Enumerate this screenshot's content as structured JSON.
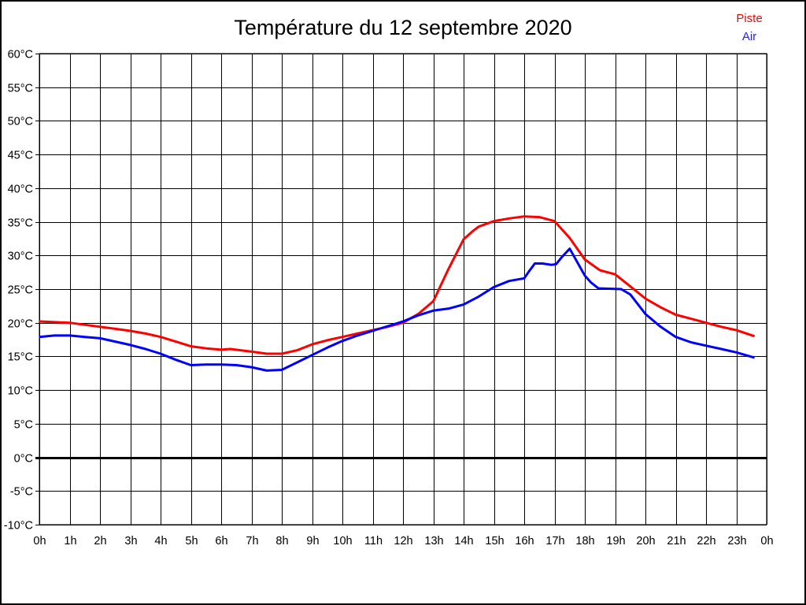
{
  "page": {
    "background": "#ffffff",
    "border_color": "#000000"
  },
  "chart_data": {
    "type": "line",
    "title": "Température du 12 septembre 2020",
    "xlabel": "",
    "ylabel": "",
    "xlim": [
      0,
      24
    ],
    "ylim": [
      -10,
      60
    ],
    "grid": true,
    "grid_color": "#000000",
    "legend_position": "top-right",
    "legend": [
      {
        "label": "Piste",
        "color": "#ff0000"
      },
      {
        "label": "Air",
        "color": "#2222ff"
      }
    ],
    "x_ticks": [
      {
        "v": 0,
        "label": "0h"
      },
      {
        "v": 1,
        "label": "1h"
      },
      {
        "v": 2,
        "label": "2h"
      },
      {
        "v": 3,
        "label": "3h"
      },
      {
        "v": 4,
        "label": "4h"
      },
      {
        "v": 5,
        "label": "5h"
      },
      {
        "v": 6,
        "label": "6h"
      },
      {
        "v": 7,
        "label": "7h"
      },
      {
        "v": 8,
        "label": "8h"
      },
      {
        "v": 9,
        "label": "9h"
      },
      {
        "v": 10,
        "label": "10h"
      },
      {
        "v": 11,
        "label": "11h"
      },
      {
        "v": 12,
        "label": "12h"
      },
      {
        "v": 13,
        "label": "13h"
      },
      {
        "v": 14,
        "label": "14h"
      },
      {
        "v": 15,
        "label": "15h"
      },
      {
        "v": 16,
        "label": "16h"
      },
      {
        "v": 17,
        "label": "17h"
      },
      {
        "v": 18,
        "label": "18h"
      },
      {
        "v": 19,
        "label": "19h"
      },
      {
        "v": 20,
        "label": "20h"
      },
      {
        "v": 21,
        "label": "21h"
      },
      {
        "v": 22,
        "label": "22h"
      },
      {
        "v": 23,
        "label": "23h"
      },
      {
        "v": 24,
        "label": "0h"
      }
    ],
    "y_ticks": [
      {
        "v": 60,
        "label": "60°C"
      },
      {
        "v": 55,
        "label": "55°C"
      },
      {
        "v": 50,
        "label": "50°C"
      },
      {
        "v": 45,
        "label": "45°C"
      },
      {
        "v": 40,
        "label": "40°C"
      },
      {
        "v": 35,
        "label": "35°C"
      },
      {
        "v": 30,
        "label": "30°C"
      },
      {
        "v": 25,
        "label": "25°C"
      },
      {
        "v": 20,
        "label": "20°C"
      },
      {
        "v": 15,
        "label": "15°C"
      },
      {
        "v": 10,
        "label": "10°C"
      },
      {
        "v": 5,
        "label": "5°C"
      },
      {
        "v": 0,
        "label": "0°C"
      },
      {
        "v": -5,
        "label": "-5°C"
      },
      {
        "v": -10,
        "label": "-10°C"
      }
    ],
    "zero_line": {
      "value": 0,
      "color": "#000000",
      "width": 3
    },
    "series": [
      {
        "name": "Piste",
        "color": "#ff0000",
        "points": [
          [
            0,
            20.2
          ],
          [
            0.5,
            20.1
          ],
          [
            1,
            20.0
          ],
          [
            1.5,
            19.7
          ],
          [
            2,
            19.4
          ],
          [
            2.5,
            19.1
          ],
          [
            3,
            18.8
          ],
          [
            3.5,
            18.4
          ],
          [
            4,
            17.9
          ],
          [
            4.5,
            17.2
          ],
          [
            5,
            16.5
          ],
          [
            5.5,
            16.2
          ],
          [
            6,
            16.0
          ],
          [
            6.3,
            16.1
          ],
          [
            7,
            15.7
          ],
          [
            7.5,
            15.4
          ],
          [
            8,
            15.4
          ],
          [
            8.5,
            15.9
          ],
          [
            9,
            16.8
          ],
          [
            9.5,
            17.4
          ],
          [
            10,
            17.9
          ],
          [
            10.5,
            18.4
          ],
          [
            11,
            18.9
          ],
          [
            11.5,
            19.4
          ],
          [
            12,
            20.0
          ],
          [
            12.5,
            21.3
          ],
          [
            13,
            23.2
          ],
          [
            13.5,
            28.0
          ],
          [
            14,
            32.4
          ],
          [
            14.3,
            33.6
          ],
          [
            14.5,
            34.3
          ],
          [
            15,
            35.1
          ],
          [
            15.5,
            35.5
          ],
          [
            16,
            35.8
          ],
          [
            16.5,
            35.7
          ],
          [
            17,
            35.1
          ],
          [
            17.5,
            32.6
          ],
          [
            18,
            29.4
          ],
          [
            18.5,
            27.8
          ],
          [
            19,
            27.2
          ],
          [
            19.5,
            25.4
          ],
          [
            20,
            23.6
          ],
          [
            20.5,
            22.3
          ],
          [
            21,
            21.2
          ],
          [
            21.5,
            20.6
          ],
          [
            22,
            20.0
          ],
          [
            22.5,
            19.4
          ],
          [
            23,
            18.9
          ],
          [
            23.6,
            18.0
          ]
        ]
      },
      {
        "name": "Air",
        "color": "#0000ff",
        "points": [
          [
            0,
            17.9
          ],
          [
            0.5,
            18.1
          ],
          [
            1,
            18.1
          ],
          [
            1.5,
            17.9
          ],
          [
            2,
            17.7
          ],
          [
            2.5,
            17.2
          ],
          [
            3,
            16.7
          ],
          [
            3.5,
            16.1
          ],
          [
            4,
            15.4
          ],
          [
            4.5,
            14.5
          ],
          [
            5,
            13.7
          ],
          [
            5.5,
            13.8
          ],
          [
            6,
            13.8
          ],
          [
            6.5,
            13.7
          ],
          [
            7,
            13.4
          ],
          [
            7.5,
            12.9
          ],
          [
            8,
            13.0
          ],
          [
            8.5,
            14.1
          ],
          [
            9,
            15.2
          ],
          [
            9.5,
            16.3
          ],
          [
            10,
            17.3
          ],
          [
            10.5,
            18.1
          ],
          [
            11,
            18.8
          ],
          [
            11.5,
            19.5
          ],
          [
            12,
            20.2
          ],
          [
            12.5,
            21.1
          ],
          [
            13,
            21.8
          ],
          [
            13.5,
            22.1
          ],
          [
            14,
            22.7
          ],
          [
            14.5,
            23.9
          ],
          [
            15,
            25.3
          ],
          [
            15.5,
            26.2
          ],
          [
            16,
            26.6
          ],
          [
            16.15,
            27.6
          ],
          [
            16.35,
            28.8
          ],
          [
            16.6,
            28.8
          ],
          [
            16.9,
            28.6
          ],
          [
            17.05,
            28.7
          ],
          [
            17.25,
            29.8
          ],
          [
            17.5,
            31.0
          ],
          [
            18,
            27.0
          ],
          [
            18.2,
            26.0
          ],
          [
            18.45,
            25.1
          ],
          [
            19.2,
            25.0
          ],
          [
            19.5,
            24.2
          ],
          [
            20,
            21.3
          ],
          [
            20.5,
            19.4
          ],
          [
            21,
            17.9
          ],
          [
            21.5,
            17.1
          ],
          [
            22,
            16.6
          ],
          [
            22.5,
            16.1
          ],
          [
            23,
            15.6
          ],
          [
            23.6,
            14.8
          ]
        ]
      }
    ]
  }
}
